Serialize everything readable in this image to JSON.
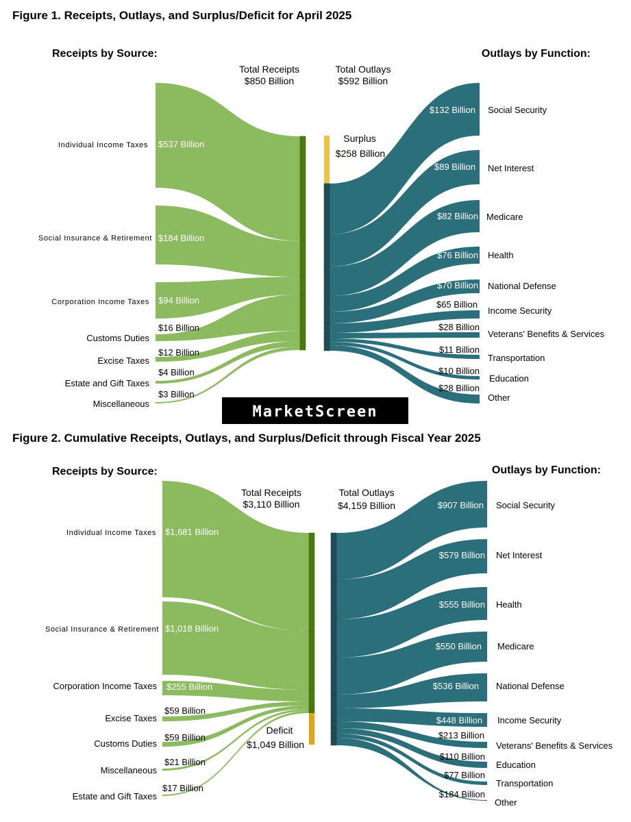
{
  "colors": {
    "receipts": "#8cba5e",
    "receipts_bar": "#4d7a0c",
    "outlays": "#2b6f7a",
    "outlays_bar": "#1f4e57",
    "surplus": "#f0c043",
    "deficit": "#e2a510"
  },
  "watermark": "MarketScreen",
  "fig1": {
    "title": "Figure 1. Receipts, Outlays, and Surplus/Deficit for April 2025",
    "receipts_heading": "Receipts by Source:",
    "outlays_heading": "Outlays by Function:",
    "total_receipts_label": "Total Receipts",
    "total_receipts_value": "$850 Billion",
    "total_outlays_label": "Total Outlays",
    "total_outlays_value": "$592 Billion",
    "balance_label": "Surplus",
    "balance_value": "$258 Billion",
    "receipts": [
      {
        "name": "Individual Income Taxes",
        "value": "$537 Billion"
      },
      {
        "name": "Social Insurance & Retirement",
        "value": "$184 Billion"
      },
      {
        "name": "Corporation Income Taxes",
        "value": "$94 Billion"
      },
      {
        "name": "Customs Duties",
        "value": "$16 Billion"
      },
      {
        "name": "Excise Taxes",
        "value": "$12 Billion"
      },
      {
        "name": "Estate and Gift Taxes",
        "value": "$4 Billion"
      },
      {
        "name": "Miscellaneous",
        "value": "$3 Billion"
      }
    ],
    "outlays": [
      {
        "name": "Social Security",
        "value": "$132 Billion"
      },
      {
        "name": "Net Interest",
        "value": "$89 Billion"
      },
      {
        "name": "Medicare",
        "value": "$82 Billion"
      },
      {
        "name": "Health",
        "value": "$76 Billion"
      },
      {
        "name": "National Defense",
        "value": "$70 Billion"
      },
      {
        "name": "Income Security",
        "value": "$65 Billion"
      },
      {
        "name": "Veterans' Benefits & Services",
        "value": "$28 Billion"
      },
      {
        "name": "Transportation",
        "value": "$11 Billion"
      },
      {
        "name": "Education",
        "value": "$10 Billion"
      },
      {
        "name": "Other",
        "value": "$28 Billion"
      }
    ]
  },
  "fig2": {
    "title": "Figure 2. Cumulative Receipts, Outlays, and Surplus/Deficit through Fiscal Year 2025",
    "receipts_heading": "Receipts by Source:",
    "outlays_heading": "Outlays by Function:",
    "total_receipts_label": "Total Receipts",
    "total_receipts_value": "$3,110 Billion",
    "total_outlays_label": "Total Outlays",
    "total_outlays_value": "$4,159 Billion",
    "balance_label": "Deficit",
    "balance_value": "$1,049 Billion",
    "receipts": [
      {
        "name": "Individual Income Taxes",
        "value": "$1,681 Billion"
      },
      {
        "name": "Social Insurance & Retirement",
        "value": "$1,018 Billion"
      },
      {
        "name": "Corporation Income Taxes",
        "value": "$255 Billion"
      },
      {
        "name": "Excise Taxes",
        "value": "$59 Billion"
      },
      {
        "name": "Customs Duties",
        "value": "$59 Billion"
      },
      {
        "name": "Miscellaneous",
        "value": "$21 Billion"
      },
      {
        "name": "Estate and Gift Taxes",
        "value": "$17 Billion"
      }
    ],
    "outlays": [
      {
        "name": "Social Security",
        "value": "$907 Billion"
      },
      {
        "name": "Net Interest",
        "value": "$579 Billion"
      },
      {
        "name": "Health",
        "value": "$555 Billion"
      },
      {
        "name": "Medicare",
        "value": "$550 Billion"
      },
      {
        "name": "National Defense",
        "value": "$536 Billion"
      },
      {
        "name": "Income Security",
        "value": "$448 Billion"
      },
      {
        "name": "Veterans' Benefits & Services",
        "value": "$213 Billion"
      },
      {
        "name": "Education",
        "value": "$110 Billion"
      },
      {
        "name": "Transportation",
        "value": "$77 Billion"
      },
      {
        "name": "Other",
        "value": "$184 Billion"
      }
    ]
  }
}
